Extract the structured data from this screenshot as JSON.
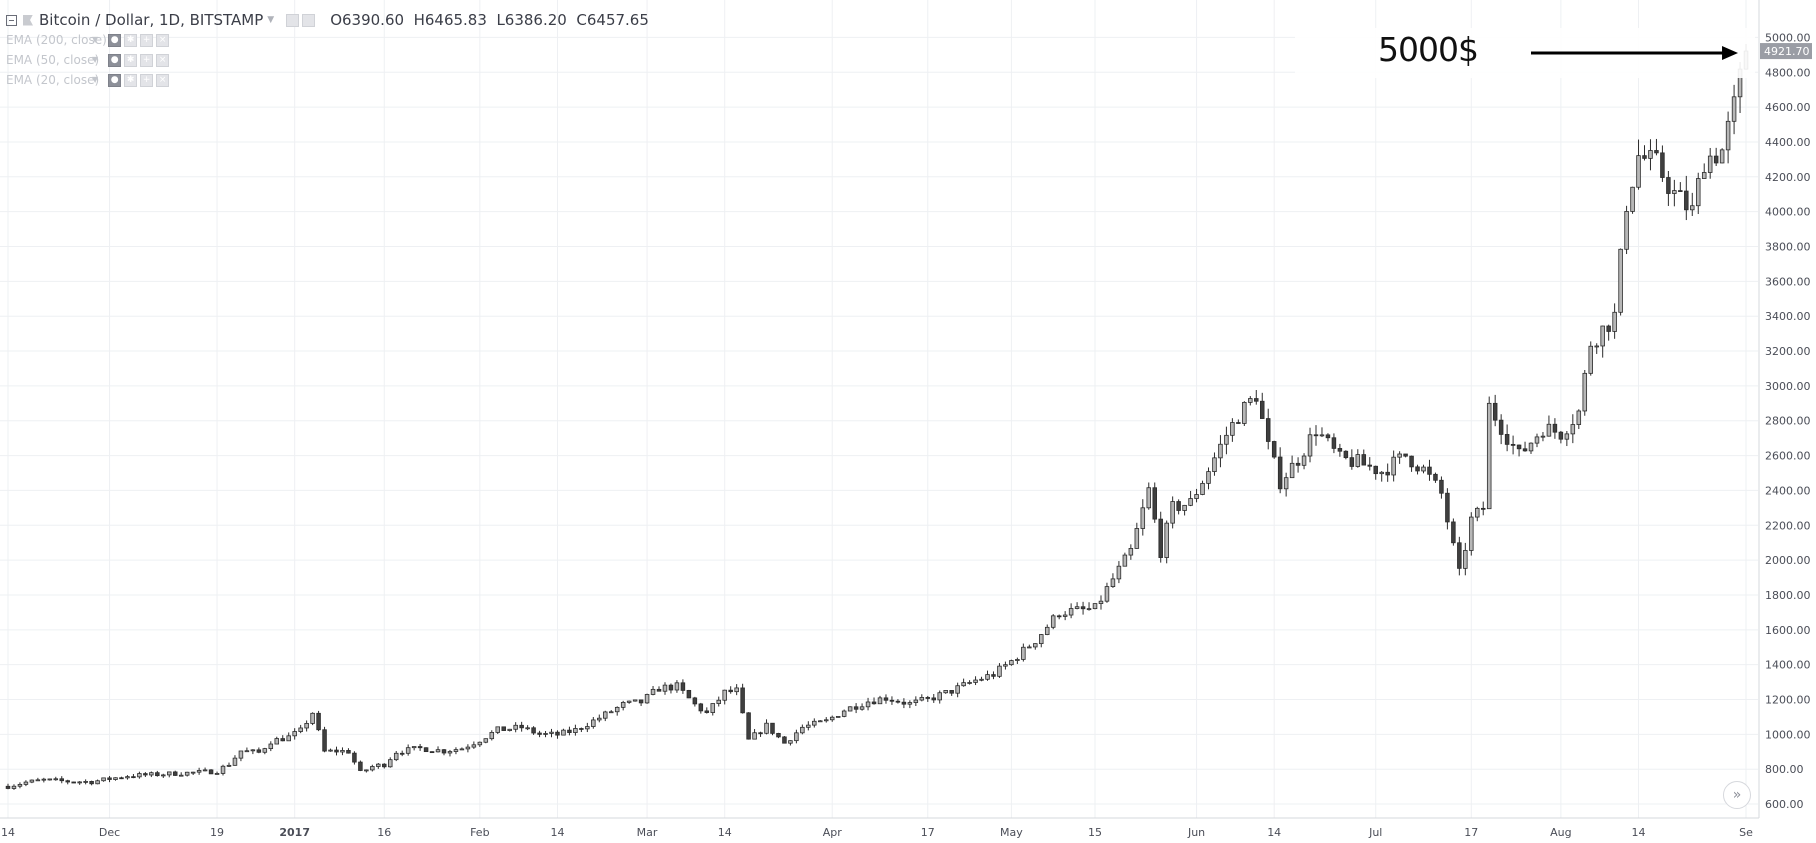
{
  "header": {
    "symbol_title": "Bitcoin / Dollar, 1D, BITSTAMP",
    "ohlc": {
      "open_label": "O",
      "open": "6390.60",
      "high_label": "H",
      "high": "6465.83",
      "low_label": "L",
      "low": "6386.20",
      "close_label": "C",
      "close": "6457.65"
    }
  },
  "indicators": [
    {
      "label": "EMA (200, close)"
    },
    {
      "label": "EMA (50, close)"
    },
    {
      "label": "EMA (20, close)"
    }
  ],
  "annotation": {
    "text": "5000$"
  },
  "price_label": "4921.70",
  "icons": {
    "collapse": "minus-box-icon",
    "flag": "flag-icon",
    "eye": "eye-icon",
    "settings": "gear-icon",
    "add": "plus-icon",
    "remove": "close-icon",
    "scroll": "double-chevron-right-icon"
  },
  "colors": {
    "up_candle": "#b7b7b7",
    "down_candle": "#3f3f3f",
    "candle_border": "#2b2b2b",
    "grid": "#eef0f3",
    "axis_text": "#4a4d57",
    "price_label_bg": "#9a9da5"
  },
  "chart_data": {
    "type": "candlestick",
    "title": "Bitcoin / Dollar, 1D, BITSTAMP",
    "y_axis": {
      "position": "right",
      "ticks": [
        "600.00",
        "800.00",
        "1000.00",
        "1200.00",
        "1400.00",
        "1600.00",
        "1800.00",
        "2000.00",
        "2200.00",
        "2400.00",
        "2600.00",
        "2800.00",
        "3000.00",
        "3200.00",
        "3400.00",
        "3600.00",
        "3800.00",
        "4000.00",
        "4200.00",
        "4400.00",
        "4600.00",
        "4800.00",
        "5000.00"
      ],
      "range": [
        520,
        5100
      ]
    },
    "x_axis": {
      "ticks": [
        {
          "label": "14",
          "date": "2016-11-14"
        },
        {
          "label": "Dec",
          "date": "2016-12-01"
        },
        {
          "label": "19",
          "date": "2016-12-19"
        },
        {
          "label": "2017",
          "date": "2017-01-01",
          "bold": true
        },
        {
          "label": "16",
          "date": "2017-01-16"
        },
        {
          "label": "Feb",
          "date": "2017-02-01"
        },
        {
          "label": "14",
          "date": "2017-02-14"
        },
        {
          "label": "Mar",
          "date": "2017-03-01"
        },
        {
          "label": "14",
          "date": "2017-03-14"
        },
        {
          "label": "Apr",
          "date": "2017-04-01"
        },
        {
          "label": "17",
          "date": "2017-04-17"
        },
        {
          "label": "May",
          "date": "2017-05-01"
        },
        {
          "label": "15",
          "date": "2017-05-15"
        },
        {
          "label": "Jun",
          "date": "2017-06-01"
        },
        {
          "label": "14",
          "date": "2017-06-14"
        },
        {
          "label": "Jul",
          "date": "2017-07-01"
        },
        {
          "label": "17",
          "date": "2017-07-17"
        },
        {
          "label": "Aug",
          "date": "2017-08-01"
        },
        {
          "label": "14",
          "date": "2017-08-14"
        },
        {
          "label": "Se",
          "date": "2017-09-01"
        }
      ],
      "range": [
        "2016-11-14",
        "2017-09-02"
      ]
    },
    "grid": true,
    "close_series": [
      [
        "2016-11-14",
        702
      ],
      [
        "2016-11-17",
        725
      ],
      [
        "2016-11-20",
        738
      ],
      [
        "2016-11-24",
        730
      ],
      [
        "2016-11-28",
        728
      ],
      [
        "2016-12-01",
        745
      ],
      [
        "2016-12-04",
        762
      ],
      [
        "2016-12-08",
        768
      ],
      [
        "2016-12-12",
        776
      ],
      [
        "2016-12-16",
        782
      ],
      [
        "2016-12-19",
        790
      ],
      [
        "2016-12-21",
        830
      ],
      [
        "2016-12-23",
        905
      ],
      [
        "2016-12-26",
        895
      ],
      [
        "2016-12-28",
        960
      ],
      [
        "2016-12-31",
        985
      ],
      [
        "2017-01-02",
        1020
      ],
      [
        "2017-01-04",
        1125
      ],
      [
        "2017-01-06",
        900
      ],
      [
        "2017-01-08",
        905
      ],
      [
        "2017-01-10",
        902
      ],
      [
        "2017-01-12",
        780
      ],
      [
        "2017-01-14",
        815
      ],
      [
        "2017-01-16",
        828
      ],
      [
        "2017-01-18",
        900
      ],
      [
        "2017-01-22",
        920
      ],
      [
        "2017-01-26",
        905
      ],
      [
        "2017-01-29",
        920
      ],
      [
        "2017-02-01",
        968
      ],
      [
        "2017-02-04",
        1025
      ],
      [
        "2017-02-08",
        1040
      ],
      [
        "2017-02-11",
        1000
      ],
      [
        "2017-02-14",
        998
      ],
      [
        "2017-02-17",
        1025
      ],
      [
        "2017-02-21",
        1095
      ],
      [
        "2017-02-25",
        1170
      ],
      [
        "2017-02-28",
        1185
      ],
      [
        "2017-03-03",
        1265
      ],
      [
        "2017-03-06",
        1275
      ],
      [
        "2017-03-09",
        1170
      ],
      [
        "2017-03-11",
        1120
      ],
      [
        "2017-03-14",
        1240
      ],
      [
        "2017-03-16",
        1250
      ],
      [
        "2017-03-18",
        965
      ],
      [
        "2017-03-21",
        1050
      ],
      [
        "2017-03-24",
        950
      ],
      [
        "2017-03-27",
        1040
      ],
      [
        "2017-03-31",
        1075
      ],
      [
        "2017-04-03",
        1140
      ],
      [
        "2017-04-07",
        1190
      ],
      [
        "2017-04-10",
        1210
      ],
      [
        "2017-04-14",
        1175
      ],
      [
        "2017-04-17",
        1200
      ],
      [
        "2017-04-21",
        1250
      ],
      [
        "2017-04-25",
        1310
      ],
      [
        "2017-04-28",
        1345
      ],
      [
        "2017-05-01",
        1420
      ],
      [
        "2017-05-05",
        1540
      ],
      [
        "2017-05-09",
        1700
      ],
      [
        "2017-05-12",
        1710
      ],
      [
        "2017-05-15",
        1720
      ],
      [
        "2017-05-18",
        1890
      ],
      [
        "2017-05-21",
        2050
      ],
      [
        "2017-05-24",
        2400
      ],
      [
        "2017-05-26",
        2050
      ],
      [
        "2017-05-28",
        2300
      ],
      [
        "2017-05-31",
        2330
      ],
      [
        "2017-06-03",
        2520
      ],
      [
        "2017-06-06",
        2720
      ],
      [
        "2017-06-08",
        2830
      ],
      [
        "2017-06-11",
        2950
      ],
      [
        "2017-06-13",
        2650
      ],
      [
        "2017-06-15",
        2450
      ],
      [
        "2017-06-18",
        2580
      ],
      [
        "2017-06-21",
        2750
      ],
      [
        "2017-06-25",
        2580
      ],
      [
        "2017-06-28",
        2560
      ],
      [
        "2017-07-02",
        2510
      ],
      [
        "2017-07-06",
        2600
      ],
      [
        "2017-07-09",
        2520
      ],
      [
        "2017-07-12",
        2380
      ],
      [
        "2017-07-15",
        1920
      ],
      [
        "2017-07-17",
        2230
      ],
      [
        "2017-07-19",
        2300
      ],
      [
        "2017-07-20",
        2880
      ],
      [
        "2017-07-25",
        2600
      ],
      [
        "2017-07-29",
        2760
      ],
      [
        "2017-08-01",
        2730
      ],
      [
        "2017-08-04",
        2850
      ],
      [
        "2017-08-06",
        3250
      ],
      [
        "2017-08-10",
        3400
      ],
      [
        "2017-08-12",
        4050
      ],
      [
        "2017-08-14",
        4320
      ],
      [
        "2017-08-17",
        4270
      ],
      [
        "2017-08-20",
        4100
      ],
      [
        "2017-08-23",
        4000
      ],
      [
        "2017-08-25",
        4300
      ],
      [
        "2017-08-28",
        4350
      ],
      [
        "2017-08-30",
        4600
      ],
      [
        "2017-09-01",
        4921.7
      ]
    ],
    "last_close": 4921.7,
    "annotation": {
      "text": "5000$",
      "arrow_to": [
        "2017-09-01",
        4921.7
      ]
    }
  }
}
